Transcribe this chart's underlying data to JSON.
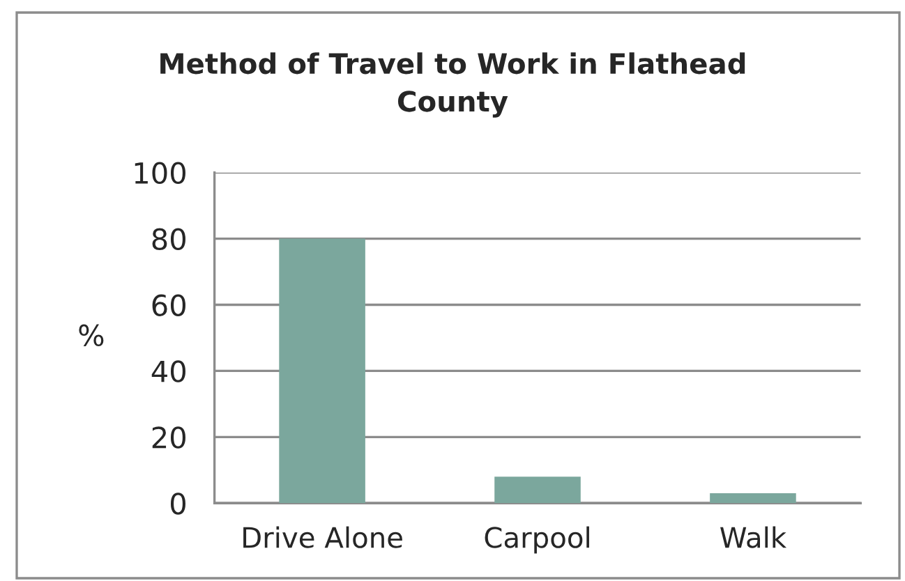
{
  "chart_data": {
    "type": "bar",
    "title": "Method of Travel to Work in Flathead County",
    "ylabel": "%",
    "categories": [
      "Drive Alone",
      "Carpool",
      "Walk"
    ],
    "values": [
      80,
      8,
      3
    ],
    "color": "#7ba79d",
    "ylim": [
      0,
      100
    ],
    "yticks": [
      0,
      20,
      40,
      60,
      80,
      100
    ],
    "grid": "y",
    "legend": false
  }
}
